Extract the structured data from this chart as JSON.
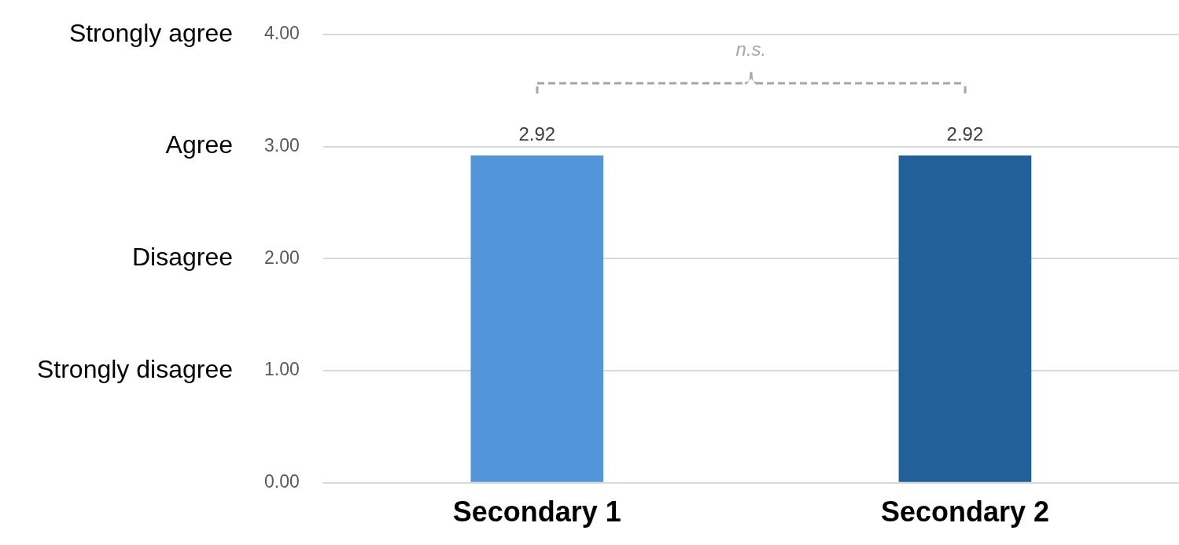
{
  "chart_data": {
    "type": "bar",
    "categories": [
      "Secondary 1",
      "Secondary 2"
    ],
    "values": [
      2.92,
      2.92
    ],
    "colors": [
      "#5296d9",
      "#22609a"
    ],
    "ylim": [
      0,
      4
    ],
    "yticks": [
      {
        "value": 0,
        "label": "0.00"
      },
      {
        "value": 1,
        "label": "1.00"
      },
      {
        "value": 2,
        "label": "2.00"
      },
      {
        "value": 3,
        "label": "3.00"
      },
      {
        "value": 4,
        "label": "4.00"
      }
    ],
    "grid": "y",
    "data_labels": true,
    "legend": false,
    "annotations": [
      "n.s.",
      "Strongly disagree",
      "Disagree",
      "Agree",
      "Strongly agree"
    ]
  }
}
